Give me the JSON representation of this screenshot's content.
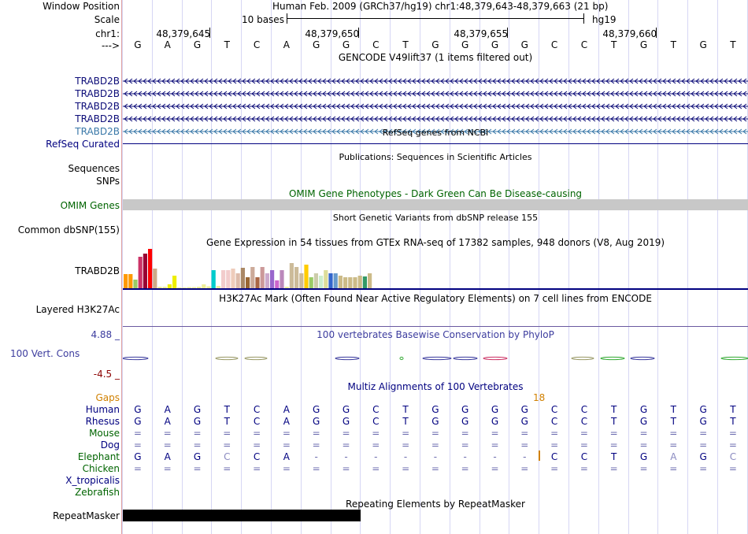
{
  "header": {
    "window_position_label": "Window Position",
    "window_position_value": "Human Feb. 2009 (GRCh37/hg19)   chr1:48,379,643-48,379,663 (21 bp)",
    "scale_label": "Scale",
    "scale_text": "10 bases",
    "assembly": "hg19",
    "chrom_label": "chr1:",
    "strand_label": "--->",
    "positions": [
      "48,379,645",
      "48,379,650",
      "48,379,655",
      "48,379,660"
    ],
    "bases": [
      "G",
      "A",
      "G",
      "T",
      "C",
      "A",
      "G",
      "G",
      "C",
      "T",
      "G",
      "G",
      "G",
      "G",
      "C",
      "C",
      "T",
      "G",
      "T",
      "G",
      "T"
    ]
  },
  "gencode": {
    "title": "GENCODE V49lift37 (1 items filtered out)",
    "rows": [
      "TRABD2B",
      "TRABD2B",
      "TRABD2B",
      "TRABD2B",
      "TRABD2B"
    ]
  },
  "refseq": {
    "title": "RefSeq genes from NCBI",
    "label": "RefSeq Curated"
  },
  "publications": {
    "title": "Publications: Sequences in Scientific Articles",
    "label_sequences": "Sequences",
    "label_snps": "SNPs"
  },
  "omim": {
    "title": "OMIM Gene Phenotypes - Dark Green Can Be Disease-causing",
    "label": "OMIM Genes"
  },
  "dbsnp": {
    "title": "Short Genetic Variants from dbSNP release 155",
    "label": "Common dbSNP(155)"
  },
  "gtex": {
    "title": "Gene Expression in 54 tissues from GTEx RNA-seq of 17382 samples, 948 donors (V8, Aug 2019)",
    "label": "TRABD2B",
    "bars": [
      {
        "v": 0.36,
        "c": "#ff9900"
      },
      {
        "v": 0.36,
        "c": "#ff9900"
      },
      {
        "v": 0.22,
        "c": "#99cc66"
      },
      {
        "v": 0.8,
        "c": "#cc3366"
      },
      {
        "v": 0.88,
        "c": "#990033"
      },
      {
        "v": 1.0,
        "c": "#ff0000"
      },
      {
        "v": 0.5,
        "c": "#ccaa88"
      },
      {
        "v": 0.04,
        "c": "#eeee99"
      },
      {
        "v": 0.04,
        "c": "#eeee99"
      },
      {
        "v": 0.1,
        "c": "#eeee00"
      },
      {
        "v": 0.32,
        "c": "#eeee00"
      },
      {
        "v": 0.02,
        "c": "#eeee99"
      },
      {
        "v": 0.02,
        "c": "#eeee99"
      },
      {
        "v": 0.03,
        "c": "#eeee99"
      },
      {
        "v": 0.03,
        "c": "#eeee99"
      },
      {
        "v": 0.04,
        "c": "#eeee99"
      },
      {
        "v": 0.1,
        "c": "#eeee99"
      },
      {
        "v": 0.05,
        "c": "#eeee99"
      },
      {
        "v": 0.46,
        "c": "#00cccc"
      },
      {
        "v": 0.06,
        "c": "#eeee99"
      },
      {
        "v": 0.46,
        "c": "#f2cccc"
      },
      {
        "v": 0.46,
        "c": "#f2cccc"
      },
      {
        "v": 0.5,
        "c": "#eeccbb"
      },
      {
        "v": 0.38,
        "c": "#ddbbaa"
      },
      {
        "v": 0.52,
        "c": "#aa8866"
      },
      {
        "v": 0.28,
        "c": "#996633"
      },
      {
        "v": 0.54,
        "c": "#ccaa99"
      },
      {
        "v": 0.28,
        "c": "#aa6644"
      },
      {
        "v": 0.54,
        "c": "#cc9999"
      },
      {
        "v": 0.38,
        "c": "#ccaacc"
      },
      {
        "v": 0.46,
        "c": "#9966cc"
      },
      {
        "v": 0.2,
        "c": "#cc66cc"
      },
      {
        "v": 0.46,
        "c": "#bb88bb"
      },
      {
        "v": 0.04,
        "c": "#eeee99"
      },
      {
        "v": 0.64,
        "c": "#ccbb99"
      },
      {
        "v": 0.54,
        "c": "#ccbb99"
      },
      {
        "v": 0.38,
        "c": "#ccbb99"
      },
      {
        "v": 0.6,
        "c": "#ffcc00"
      },
      {
        "v": 0.28,
        "c": "#99cc66"
      },
      {
        "v": 0.38,
        "c": "#ccccaa"
      },
      {
        "v": 0.32,
        "c": "#cceecc"
      },
      {
        "v": 0.46,
        "c": "#dddd99"
      },
      {
        "v": 0.38,
        "c": "#3366cc"
      },
      {
        "v": 0.38,
        "c": "#6699cc"
      },
      {
        "v": 0.32,
        "c": "#ccbb88"
      },
      {
        "v": 0.28,
        "c": "#ccbb88"
      },
      {
        "v": 0.28,
        "c": "#ccbb88"
      },
      {
        "v": 0.28,
        "c": "#ccbb88"
      },
      {
        "v": 0.32,
        "c": "#ccbb88"
      },
      {
        "v": 0.3,
        "c": "#339966"
      },
      {
        "v": 0.38,
        "c": "#ccbb88"
      }
    ]
  },
  "h3k27ac": {
    "title": "H3K27Ac Mark (Often Found Near Active Regulatory Elements) on 7 cell lines from ENCODE",
    "label": "Layered H3K27Ac"
  },
  "phylop": {
    "title": "100 vertebrates Basewise Conservation by PhyloP",
    "label": "100 Vert. Cons",
    "max_label": "4.88 _",
    "min_label": "-4.5 _"
  },
  "multiz": {
    "title": "Multiz Alignments of 100 Vertebrates",
    "gaps_label": "Gaps",
    "gap_count": "18",
    "species": [
      {
        "name": "Human",
        "color": "#000080",
        "bases": [
          "G",
          "A",
          "G",
          "T",
          "C",
          "A",
          "G",
          "G",
          "C",
          "T",
          "G",
          "G",
          "G",
          "G",
          "C",
          "C",
          "T",
          "G",
          "T",
          "G",
          "T"
        ]
      },
      {
        "name": "Rhesus",
        "color": "#000080",
        "bases": [
          "G",
          "A",
          "G",
          "T",
          "C",
          "A",
          "G",
          "G",
          "C",
          "T",
          "G",
          "G",
          "G",
          "G",
          "C",
          "C",
          "T",
          "G",
          "T",
          "G",
          "T"
        ]
      },
      {
        "name": "Mouse",
        "color": "#006400",
        "bases": [
          "=",
          "=",
          "=",
          "=",
          "=",
          "=",
          "=",
          "=",
          "=",
          "=",
          "=",
          "=",
          "=",
          "=",
          "=",
          "=",
          "=",
          "=",
          "=",
          "=",
          "="
        ]
      },
      {
        "name": "Dog",
        "color": "#000080",
        "bases": [
          "=",
          "=",
          "=",
          "=",
          "=",
          "=",
          "=",
          "=",
          "=",
          "=",
          "=",
          "=",
          "=",
          "=",
          "=",
          "=",
          "=",
          "=",
          "=",
          "=",
          "="
        ]
      },
      {
        "name": "Elephant",
        "color": "#006400",
        "bases": [
          "G",
          "A",
          "G",
          "C",
          "C",
          "A",
          "-",
          "-",
          "-",
          "-",
          "-",
          "-",
          "-",
          "-",
          "C",
          "C",
          "T",
          "G",
          "A",
          "G",
          "C"
        ]
      },
      {
        "name": "Chicken",
        "color": "#006400",
        "bases": [
          "=",
          "=",
          "=",
          "=",
          "=",
          "=",
          "=",
          "=",
          "=",
          "=",
          "=",
          "=",
          "=",
          "=",
          "=",
          "=",
          "=",
          "=",
          "=",
          "=",
          "="
        ]
      },
      {
        "name": "X_tropicalis",
        "color": "#000080",
        "bases": []
      },
      {
        "name": "Zebrafish",
        "color": "#006400",
        "bases": []
      }
    ]
  },
  "repeatmasker": {
    "title": "Repeating Elements by RepeatMasker",
    "label": "RepeatMasker"
  },
  "colors": {
    "navy": "#000080",
    "gencode_blue": "#0c0c78",
    "gencode_light": "#3a78a8",
    "omim_gray": "#c8c8c8",
    "phylop_blue": "#3c3c9e",
    "phylop_red": "#8b0000",
    "gaps_orange": "#d08000",
    "repeat_black": "#000000"
  }
}
